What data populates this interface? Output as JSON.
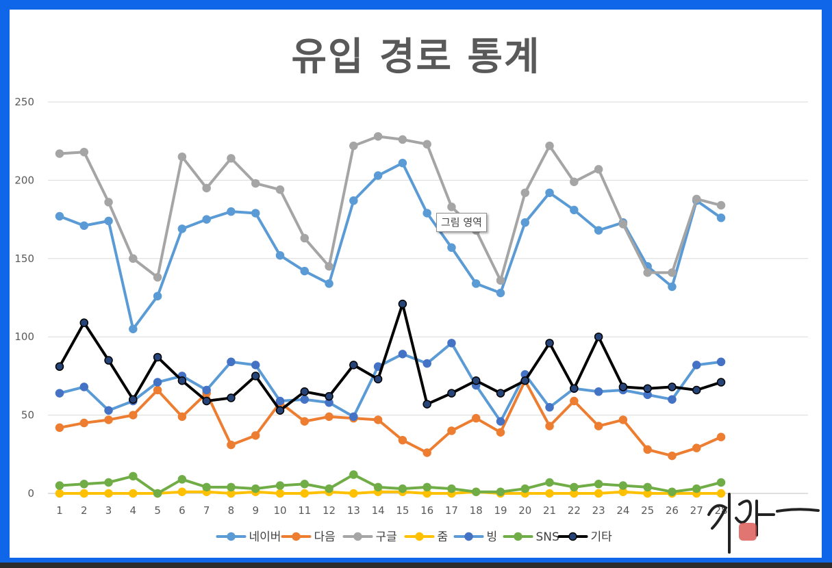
{
  "chart_data": {
    "type": "line",
    "title": "유입 경로 통계",
    "x": [
      1,
      2,
      3,
      4,
      5,
      6,
      7,
      8,
      9,
      10,
      11,
      12,
      13,
      14,
      15,
      16,
      17,
      18,
      19,
      20,
      21,
      22,
      23,
      24,
      25,
      26,
      27,
      28
    ],
    "ylim": [
      0,
      250
    ],
    "yticks": [
      0,
      50,
      100,
      150,
      200,
      250
    ],
    "grid": true,
    "legend_position": "bottom",
    "series": [
      {
        "name": "네이버",
        "color": "#5b9bd5",
        "values": [
          177,
          171,
          174,
          105,
          126,
          169,
          175,
          180,
          179,
          152,
          142,
          134,
          187,
          203,
          211,
          179,
          157,
          134,
          128,
          173,
          192,
          181,
          168,
          173,
          145,
          132,
          187,
          176
        ]
      },
      {
        "name": "다음",
        "color": "#ed7d31",
        "values": [
          42,
          45,
          47,
          50,
          66,
          49,
          64,
          31,
          37,
          58,
          46,
          49,
          48,
          47,
          34,
          26,
          40,
          48,
          39,
          72,
          43,
          59,
          43,
          47,
          28,
          24,
          29,
          36
        ]
      },
      {
        "name": "구글",
        "color": "#a5a5a5",
        "values": [
          217,
          218,
          186,
          150,
          138,
          215,
          195,
          214,
          198,
          194,
          163,
          145,
          222,
          228,
          226,
          223,
          183,
          168,
          136,
          192,
          222,
          199,
          207,
          172,
          141,
          141,
          188,
          184
        ]
      },
      {
        "name": "줌",
        "color": "#ffc000",
        "values": [
          0,
          0,
          0,
          0,
          0,
          1,
          1,
          0,
          1,
          0,
          0,
          1,
          0,
          1,
          1,
          0,
          0,
          1,
          0,
          0,
          0,
          0,
          0,
          1,
          0,
          0,
          0,
          0
        ]
      },
      {
        "name": "빙",
        "color": "#4472c4",
        "line_color": "#5b9bd5",
        "values": [
          64,
          68,
          53,
          59,
          71,
          75,
          66,
          84,
          82,
          59,
          60,
          58,
          49,
          81,
          89,
          83,
          96,
          69,
          46,
          76,
          55,
          67,
          65,
          66,
          63,
          60,
          82,
          84
        ]
      },
      {
        "name": "SNS",
        "color": "#70ad47",
        "values": [
          5,
          6,
          7,
          11,
          0,
          9,
          4,
          4,
          3,
          5,
          6,
          3,
          12,
          4,
          3,
          4,
          3,
          1,
          1,
          3,
          7,
          4,
          6,
          5,
          4,
          1,
          3,
          7
        ]
      },
      {
        "name": "기타",
        "color": "#000000",
        "marker_fill": "#264478",
        "values": [
          81,
          109,
          85,
          60,
          87,
          72,
          59,
          61,
          75,
          53,
          65,
          62,
          82,
          73,
          121,
          57,
          64,
          72,
          64,
          72,
          96,
          67,
          100,
          68,
          67,
          68,
          66,
          71
        ]
      }
    ]
  },
  "tooltip": {
    "text": "그림 영역"
  },
  "signature": {
    "text": "하아"
  }
}
